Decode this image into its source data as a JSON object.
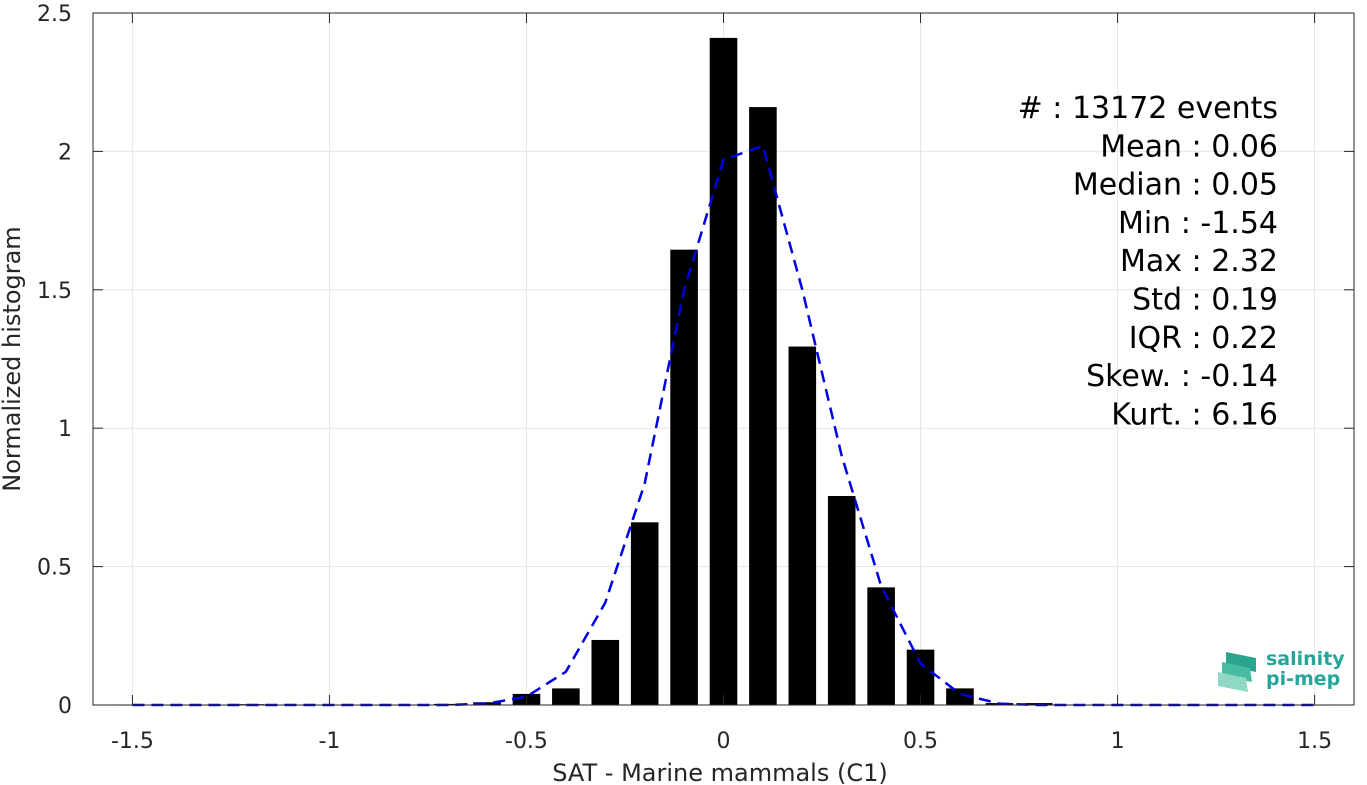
{
  "chart_data": {
    "type": "bar",
    "xlabel": "SAT - Marine mammals (C1)",
    "ylabel": "Normalized histogram",
    "xlim": [
      -1.6,
      1.6
    ],
    "ylim": [
      0,
      2.5
    ],
    "x_ticks": [
      -1.5,
      -1,
      -0.5,
      0,
      0.5,
      1,
      1.5
    ],
    "x_tick_labels": [
      "-1.5",
      "-1",
      "-0.5",
      "0",
      "0.5",
      "1",
      "1.5"
    ],
    "y_ticks": [
      0,
      0.5,
      1,
      1.5,
      2,
      2.5
    ],
    "y_tick_labels": [
      "0",
      "0.5",
      "1",
      "1.5",
      "2",
      "2.5"
    ],
    "grid": true,
    "bar_color": "#000000",
    "bar_width": 0.07,
    "bars": {
      "x": [
        -1.5,
        -1.4,
        -1.3,
        -1.2,
        -1.1,
        -1.0,
        -0.9,
        -0.8,
        -0.7,
        -0.6,
        -0.5,
        -0.4,
        -0.3,
        -0.2,
        -0.1,
        0.0,
        0.1,
        0.2,
        0.3,
        0.4,
        0.5,
        0.6,
        0.7,
        0.8,
        0.9,
        1.0,
        1.1,
        1.2,
        1.3,
        1.4,
        1.5
      ],
      "values": [
        0.001,
        0.001,
        0.001,
        0.003,
        0.001,
        0.001,
        0.001,
        0.001,
        0.004,
        0.01,
        0.04,
        0.06,
        0.235,
        0.66,
        1.645,
        2.41,
        2.16,
        1.295,
        0.755,
        0.425,
        0.2,
        0.06,
        0.007,
        0.007,
        0.001,
        0.001,
        0.001,
        0.001,
        0.001,
        0.001,
        0.001
      ]
    },
    "fit_series": {
      "style": "dashed",
      "color": "#0000e6",
      "x": [
        -1.5,
        -1.4,
        -1.3,
        -1.2,
        -1.1,
        -1.0,
        -0.9,
        -0.8,
        -0.7,
        -0.6,
        -0.5,
        -0.4,
        -0.3,
        -0.2,
        -0.1,
        0.0,
        0.1,
        0.2,
        0.3,
        0.4,
        0.5,
        0.6,
        0.7,
        0.8,
        0.9,
        1.0,
        1.1,
        1.2,
        1.3,
        1.4,
        1.5
      ],
      "values": [
        0,
        0,
        0,
        0,
        0,
        0,
        0,
        0,
        0,
        0.005,
        0.03,
        0.12,
        0.37,
        0.8,
        1.5,
        1.97,
        2.02,
        1.5,
        0.9,
        0.43,
        0.15,
        0.04,
        0.005,
        0,
        0,
        0,
        0,
        0,
        0,
        0,
        0
      ]
    },
    "annotations": [
      "#  : 13172 events",
      "Mean : 0.06",
      "Median : 0.05",
      "Min : -1.54",
      "Max : 2.32",
      "Std : 0.19",
      "IQR : 0.22",
      "Skew. : -0.14",
      "Kurt. : 6.16"
    ]
  },
  "logo": {
    "line1": "salinity",
    "line2": "pi-mep"
  }
}
